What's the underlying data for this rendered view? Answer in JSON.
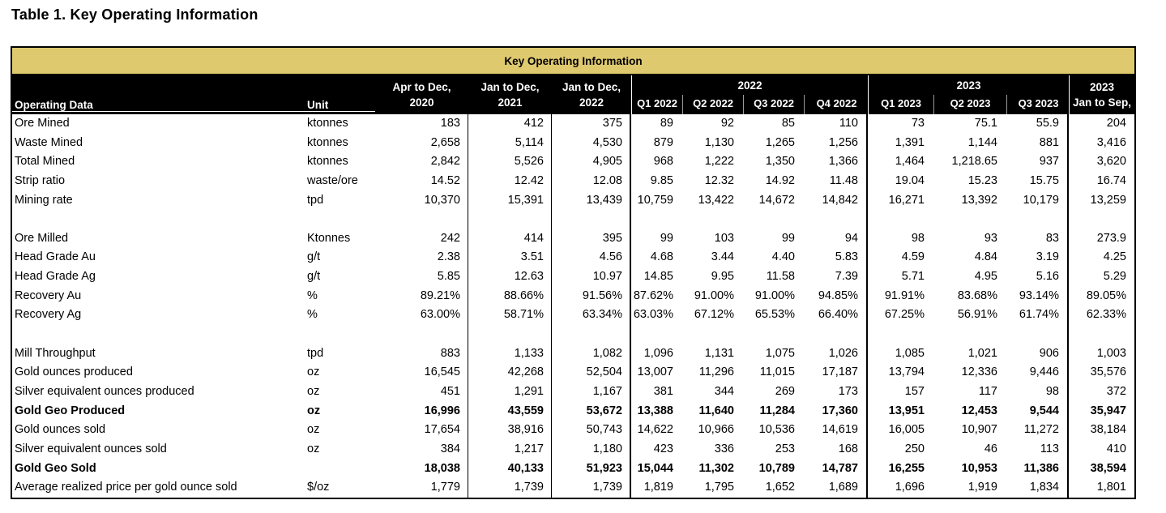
{
  "page_title": "Table 1. Key Operating Information",
  "colors": {
    "banner_bg": "#dfc96f",
    "header_bg": "#000000",
    "header_text": "#ffffff",
    "body_text": "#000000",
    "border": "#000000"
  },
  "table": {
    "banner": "Key Operating Information",
    "header": {
      "operating_data": "Operating Data",
      "unit": "Unit",
      "annual_cols": [
        {
          "line1": "Apr to Dec,",
          "line2": "2020"
        },
        {
          "line1": "Jan to Dec,",
          "line2": "2021"
        },
        {
          "line1": "Jan to Dec,",
          "line2": "2022"
        }
      ],
      "group_2022": {
        "label": "2022",
        "quarters": [
          "Q1 2022",
          "Q2 2022",
          "Q3 2022",
          "Q4 2022"
        ]
      },
      "group_2023": {
        "label": "2023",
        "quarters": [
          "Q1 2023",
          "Q2 2023",
          "Q3 2023"
        ]
      },
      "ytd_col": {
        "line1": "2023",
        "line2": "Jan to Sep,"
      }
    },
    "rows": [
      {
        "label": "Ore Mined",
        "unit": "ktonnes",
        "bold": false,
        "values": [
          "183",
          "412",
          "375",
          "89",
          "92",
          "85",
          "110",
          "73",
          "75.1",
          "55.9",
          "204"
        ]
      },
      {
        "label": "Waste Mined",
        "unit": "ktonnes",
        "bold": false,
        "values": [
          "2,658",
          "5,114",
          "4,530",
          "879",
          "1,130",
          "1,265",
          "1,256",
          "1,391",
          "1,144",
          "881",
          "3,416"
        ]
      },
      {
        "label": "Total Mined",
        "unit": "ktonnes",
        "bold": false,
        "values": [
          "2,842",
          "5,526",
          "4,905",
          "968",
          "1,222",
          "1,350",
          "1,366",
          "1,464",
          "1,218.65",
          "937",
          "3,620"
        ]
      },
      {
        "label": "Strip ratio",
        "unit": "waste/ore",
        "bold": false,
        "values": [
          "14.52",
          "12.42",
          "12.08",
          "9.85",
          "12.32",
          "14.92",
          "11.48",
          "19.04",
          "15.23",
          "15.75",
          "16.74"
        ]
      },
      {
        "label": "Mining rate",
        "unit": "tpd",
        "bold": false,
        "values": [
          "10,370",
          "15,391",
          "13,439",
          "10,759",
          "13,422",
          "14,672",
          "14,842",
          "16,271",
          "13,392",
          "10,179",
          "13,259"
        ]
      },
      {
        "label": "",
        "unit": "",
        "bold": false,
        "values": [
          "",
          "",
          "",
          "",
          "",
          "",
          "",
          "",
          "",
          "",
          ""
        ]
      },
      {
        "label": "Ore Milled",
        "unit": "Ktonnes",
        "bold": false,
        "values": [
          "242",
          "414",
          "395",
          "99",
          "103",
          "99",
          "94",
          "98",
          "93",
          "83",
          "273.9"
        ]
      },
      {
        "label": "Head Grade Au",
        "unit": "g/t",
        "bold": false,
        "values": [
          "2.38",
          "3.51",
          "4.56",
          "4.68",
          "3.44",
          "4.40",
          "5.83",
          "4.59",
          "4.84",
          "3.19",
          "4.25"
        ]
      },
      {
        "label": "Head Grade Ag",
        "unit": "g/t",
        "bold": false,
        "values": [
          "5.85",
          "12.63",
          "10.97",
          "14.85",
          "9.95",
          "11.58",
          "7.39",
          "5.71",
          "4.95",
          "5.16",
          "5.29"
        ]
      },
      {
        "label": "Recovery Au",
        "unit": "%",
        "bold": false,
        "values": [
          "89.21%",
          "88.66%",
          "91.56%",
          "87.62%",
          "91.00%",
          "91.00%",
          "94.85%",
          "91.91%",
          "83.68%",
          "93.14%",
          "89.05%"
        ]
      },
      {
        "label": "Recovery Ag",
        "unit": "%",
        "bold": false,
        "values": [
          "63.00%",
          "58.71%",
          "63.34%",
          "63.03%",
          "67.12%",
          "65.53%",
          "66.40%",
          "67.25%",
          "56.91%",
          "61.74%",
          "62.33%"
        ]
      },
      {
        "label": "",
        "unit": "",
        "bold": false,
        "values": [
          "",
          "",
          "",
          "",
          "",
          "",
          "",
          "",
          "",
          "",
          ""
        ]
      },
      {
        "label": "Mill Throughput",
        "unit": "tpd",
        "bold": false,
        "values": [
          "883",
          "1,133",
          "1,082",
          "1,096",
          "1,131",
          "1,075",
          "1,026",
          "1,085",
          "1,021",
          "906",
          "1,003"
        ]
      },
      {
        "label": "Gold ounces produced",
        "unit": "oz",
        "bold": false,
        "values": [
          "16,545",
          "42,268",
          "52,504",
          "13,007",
          "11,296",
          "11,015",
          "17,187",
          "13,794",
          "12,336",
          "9,446",
          "35,576"
        ]
      },
      {
        "label": "Silver equivalent ounces produced",
        "unit": "oz",
        "bold": false,
        "values": [
          "451",
          "1,291",
          "1,167",
          "381",
          "344",
          "269",
          "173",
          "157",
          "117",
          "98",
          "372"
        ]
      },
      {
        "label": "Gold Geo Produced",
        "unit": "oz",
        "bold": true,
        "values": [
          "16,996",
          "43,559",
          "53,672",
          "13,388",
          "11,640",
          "11,284",
          "17,360",
          "13,951",
          "12,453",
          "9,544",
          "35,947"
        ]
      },
      {
        "label": "Gold ounces sold",
        "unit": "oz",
        "bold": false,
        "values": [
          "17,654",
          "38,916",
          "50,743",
          "14,622",
          "10,966",
          "10,536",
          "14,619",
          "16,005",
          "10,907",
          "11,272",
          "38,184"
        ]
      },
      {
        "label": "Silver equivalent ounces sold",
        "unit": "oz",
        "bold": false,
        "values": [
          "384",
          "1,217",
          "1,180",
          "423",
          "336",
          "253",
          "168",
          "250",
          "46",
          "113",
          "410"
        ]
      },
      {
        "label": "Gold Geo Sold",
        "unit": "",
        "bold": true,
        "values": [
          "18,038",
          "40,133",
          "51,923",
          "15,044",
          "11,302",
          "10,789",
          "14,787",
          "16,255",
          "10,953",
          "11,386",
          "38,594"
        ]
      },
      {
        "label": "Average realized price per gold ounce sold",
        "unit": "$/oz",
        "bold": false,
        "values": [
          "1,779",
          "1,739",
          "1,739",
          "1,819",
          "1,795",
          "1,652",
          "1,689",
          "1,696",
          "1,919",
          "1,834",
          "1,801"
        ]
      }
    ]
  }
}
